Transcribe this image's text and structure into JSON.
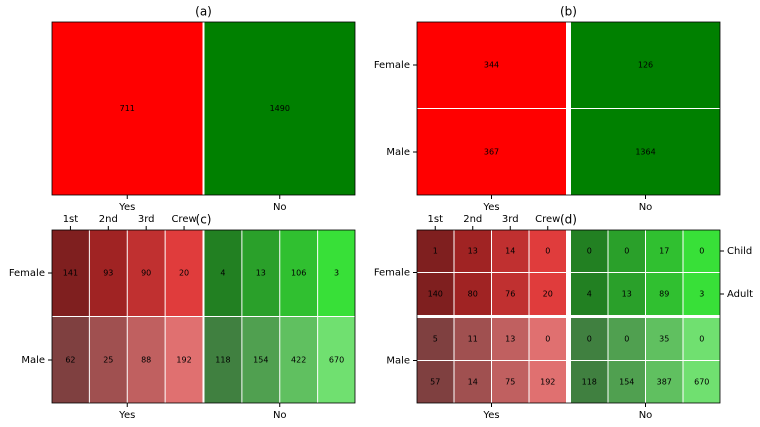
{
  "chart_data": [
    {
      "type": "mosaic",
      "title": "(a)",
      "categories": [
        "Yes",
        "No"
      ],
      "values": [
        711,
        1490
      ],
      "colors": [
        "#ff0000",
        "#008000"
      ]
    },
    {
      "type": "mosaic",
      "title": "(b)",
      "categories": [
        "Yes",
        "No"
      ],
      "rows": [
        "Female",
        "Male"
      ],
      "values": [
        [
          344,
          367
        ],
        [
          126,
          1364
        ]
      ],
      "colors": [
        [
          "#ff0000",
          "#ff0000"
        ],
        [
          "#008000",
          "#008000"
        ]
      ]
    },
    {
      "type": "mosaic",
      "title": "(c)",
      "categories": [
        "Yes",
        "No"
      ],
      "columns": [
        "1st",
        "2nd",
        "3rd",
        "Crew"
      ],
      "rows": [
        "Female",
        "Male"
      ],
      "values": [
        [
          [
            141,
            62
          ],
          [
            93,
            25
          ],
          [
            90,
            88
          ],
          [
            20,
            192
          ]
        ],
        [
          [
            4,
            118
          ],
          [
            13,
            154
          ],
          [
            106,
            422
          ],
          [
            3,
            670
          ]
        ]
      ],
      "colors": [
        [
          [
            "#7f1f1f",
            "#7f4040"
          ],
          [
            "#a02323",
            "#a05050"
          ],
          [
            "#c03030",
            "#c06060"
          ],
          [
            "#e03c3c",
            "#e07070"
          ]
        ],
        [
          [
            "#228022",
            "#408040"
          ],
          [
            "#2aa02a",
            "#50a050"
          ],
          [
            "#30c030",
            "#60c060"
          ],
          [
            "#38e038",
            "#70e070"
          ]
        ]
      ]
    },
    {
      "type": "mosaic",
      "title": "(d)",
      "categories": [
        "Yes",
        "No"
      ],
      "columns": [
        "1st",
        "2nd",
        "3rd",
        "Crew"
      ],
      "rows": [
        "Female",
        "Male"
      ],
      "subrows": [
        "Child",
        "Adult"
      ],
      "values": [
        [
          [
            [
              1,
              140
            ],
            [
              5,
              57
            ]
          ],
          [
            [
              13,
              80
            ],
            [
              11,
              14
            ]
          ],
          [
            [
              14,
              76
            ],
            [
              13,
              75
            ]
          ],
          [
            [
              0,
              20
            ],
            [
              0,
              192
            ]
          ]
        ],
        [
          [
            [
              0,
              4
            ],
            [
              0,
              118
            ]
          ],
          [
            [
              0,
              13
            ],
            [
              0,
              154
            ]
          ],
          [
            [
              17,
              89
            ],
            [
              35,
              387
            ]
          ],
          [
            [
              0,
              3
            ],
            [
              0,
              670
            ]
          ]
        ]
      ],
      "colors": [
        [
          [
            [
              "#7f1f1f",
              "#7f1f1f"
            ],
            [
              "#7f4040",
              "#7f4040"
            ]
          ],
          [
            [
              "#a02323",
              "#a02323"
            ],
            [
              "#a05050",
              "#a05050"
            ]
          ],
          [
            [
              "#c03030",
              "#c03030"
            ],
            [
              "#c06060",
              "#c06060"
            ]
          ],
          [
            [
              "#e03c3c",
              "#e03c3c"
            ],
            [
              "#e07070",
              "#e07070"
            ]
          ]
        ],
        [
          [
            [
              "#228022",
              "#228022"
            ],
            [
              "#408040",
              "#408040"
            ]
          ],
          [
            [
              "#2aa02a",
              "#2aa02a"
            ],
            [
              "#50a050",
              "#50a050"
            ]
          ],
          [
            [
              "#30c030",
              "#30c030"
            ],
            [
              "#60c060",
              "#60c060"
            ]
          ],
          [
            [
              "#38e038",
              "#38e038"
            ],
            [
              "#70e070",
              "#70e070"
            ]
          ]
        ]
      ]
    }
  ]
}
